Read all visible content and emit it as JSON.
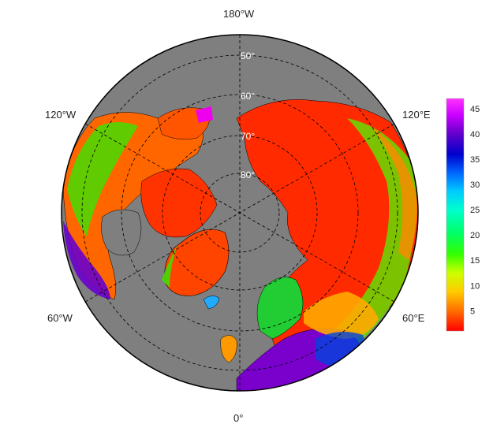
{
  "map": {
    "projection": "north-polar-stereographic",
    "ocean_color": "#7f7f7f",
    "land_outline_color": "#000000",
    "graticule": {
      "line_style": "dashed",
      "latitudes": [
        50,
        60,
        70,
        80
      ],
      "meridians_deg": [
        0,
        60,
        120,
        180,
        240,
        300
      ]
    },
    "longitude_labels": [
      "180°W",
      "120°E",
      "60°E",
      "0°",
      "60°W",
      "120°W"
    ],
    "latitude_labels": [
      "50°",
      "60°",
      "70°",
      "80°"
    ]
  },
  "colorbar": {
    "colormap": "rainbow (red-yellow-green-cyan-blue-purple-magenta)",
    "colors": [
      "#ff0000",
      "#ff6600",
      "#ffcc00",
      "#ccff00",
      "#33ff00",
      "#00ff66",
      "#00ffcc",
      "#00ccff",
      "#0066ff",
      "#0000cc",
      "#6600cc",
      "#cc00ff",
      "#ff33ff"
    ],
    "range": [
      1,
      47
    ],
    "ticks": [
      "5",
      "10",
      "15",
      "20",
      "25",
      "30",
      "35",
      "40",
      "45"
    ]
  }
}
